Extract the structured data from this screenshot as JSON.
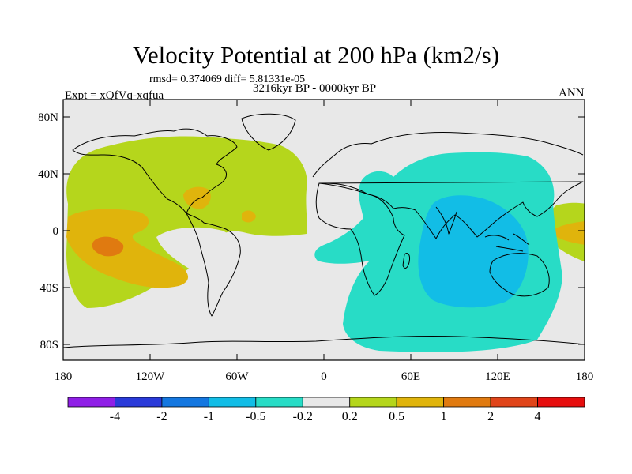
{
  "figure": {
    "title": "Velocity Potential at 200 hPa (km2/s)",
    "subtitle": "rmsd= 0.374069 diff= 5.81331e-05",
    "period": "3216kyr BP - 0000kyr BP",
    "experiment": "Expt = xQfVq-xqfua",
    "season": "ANN"
  },
  "axes": {
    "lat_ticks": [
      "80N",
      "40N",
      "0",
      "40S",
      "80S"
    ],
    "lon_ticks": [
      "180",
      "120W",
      "60W",
      "0",
      "60E",
      "120E",
      "180"
    ]
  },
  "colorbar": {
    "colors": [
      "#8f1fe6",
      "#2a3ad9",
      "#1477e0",
      "#12bde6",
      "#28dcc6",
      "#e8e8e8",
      "#b5d61c",
      "#e0b40c",
      "#e07a10",
      "#e0451a",
      "#e60e0e"
    ],
    "labels": [
      "-4",
      "-2",
      "-1",
      "-0.5",
      "-0.2",
      "0.2",
      "0.5",
      "1",
      "2",
      "4"
    ]
  },
  "regions": {
    "background_color": "#e8e8e8",
    "positive_weak_color": "#b5d61c",
    "positive_mid_color": "#e0b40c",
    "positive_strong_color": "#e07a10",
    "negative_weak_color": "#28dcc6",
    "negative_mid_color": "#12bde6"
  }
}
